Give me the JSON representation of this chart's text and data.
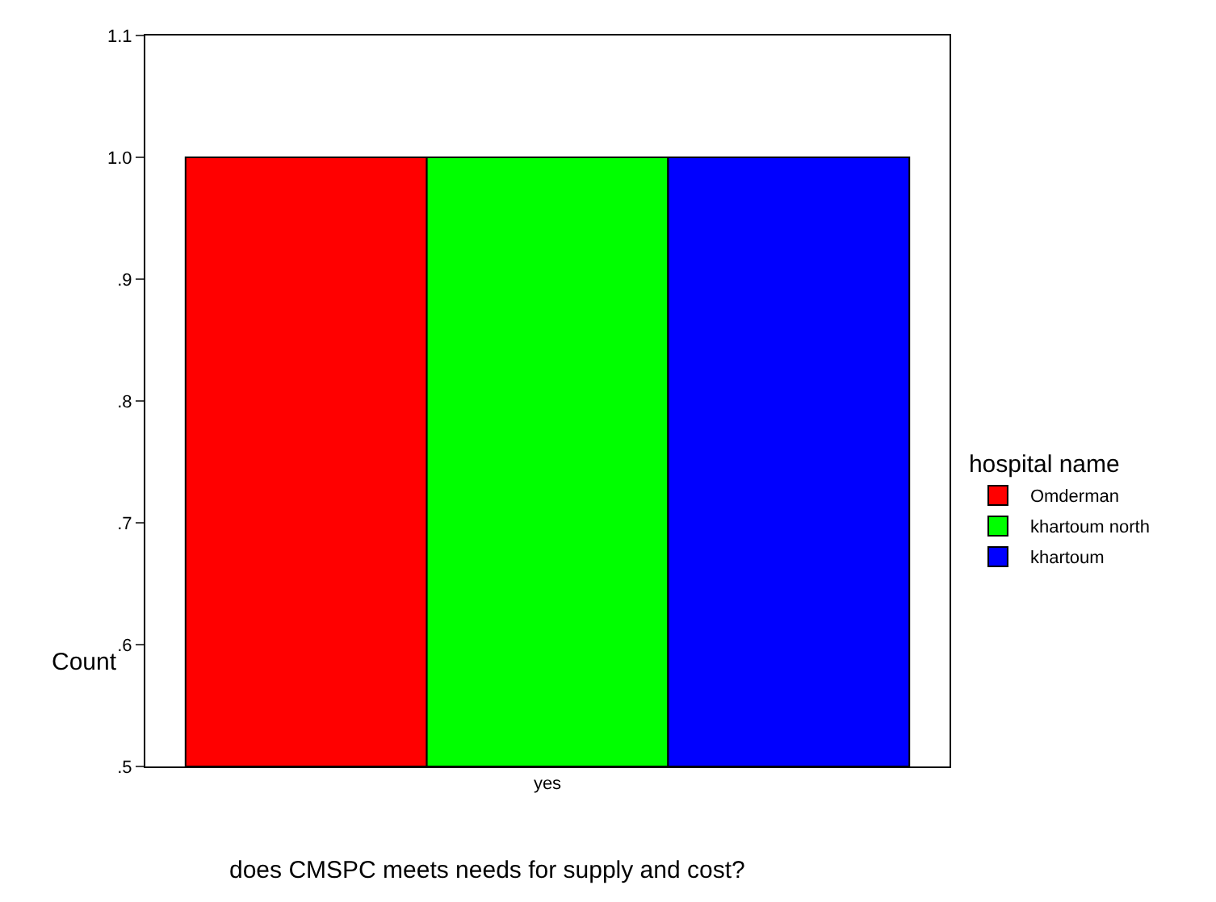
{
  "chart_data": {
    "type": "bar",
    "xlabel": "does CMSPC meets needs for supply and cost?",
    "ylabel": "Count",
    "legend_title": "hospital name",
    "categories": [
      "yes"
    ],
    "series": [
      {
        "name": "Omderman",
        "color": "#ff0000",
        "values": [
          1.0
        ]
      },
      {
        "name": "khartoum north",
        "color": "#00ff00",
        "values": [
          1.0
        ]
      },
      {
        "name": "khartoum",
        "color": "#0000ff",
        "values": [
          1.0
        ]
      }
    ],
    "ylim": [
      0.5,
      1.1
    ],
    "yticks": [
      {
        "value": 0.5,
        "label": ".5"
      },
      {
        "value": 0.6,
        "label": ".6"
      },
      {
        "value": 0.7,
        "label": ".7"
      },
      {
        "value": 0.8,
        "label": ".8"
      },
      {
        "value": 0.9,
        "label": ".9"
      },
      {
        "value": 1.0,
        "label": "1.0"
      },
      1.1
    ],
    "legend": "right"
  }
}
